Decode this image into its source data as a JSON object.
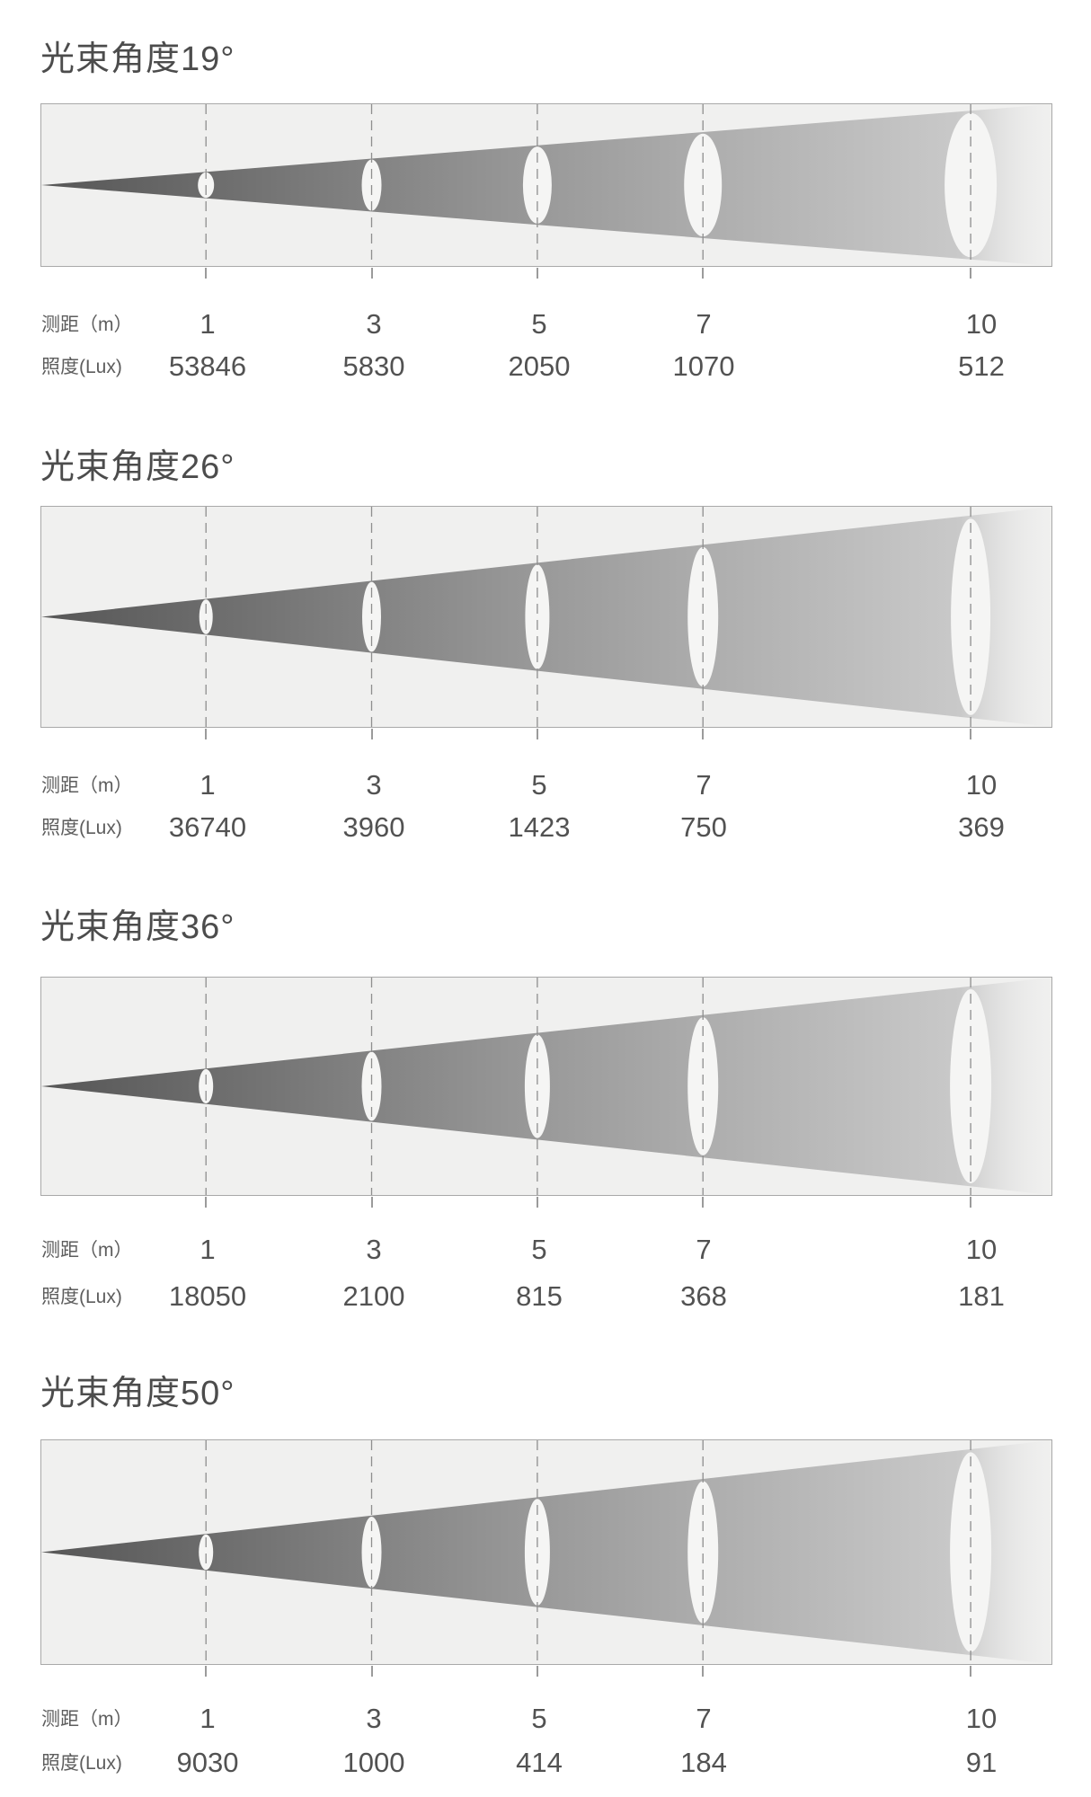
{
  "labels": {
    "distance_row": "测距（m）",
    "lux_row": "照度(Lux)"
  },
  "distances": [
    "1",
    "3",
    "5",
    "7",
    "10"
  ],
  "sections": [
    {
      "title": "光束角度19°",
      "lux": [
        "53846",
        "5830",
        "2050",
        "1070",
        "512"
      ]
    },
    {
      "title": "光束角度26°",
      "lux": [
        "36740",
        "3960",
        "1423",
        "750",
        "369"
      ]
    },
    {
      "title": "光束角度36°",
      "lux": [
        "18050",
        "2100",
        "815",
        "368",
        "181"
      ]
    },
    {
      "title": "光束角度50°",
      "lux": [
        "9030",
        "1000",
        "414",
        "184",
        "91"
      ]
    }
  ],
  "colors": {
    "page_bg": "#ffffff",
    "panel_bg": "#f0f0ef",
    "panel_border": "#a9a9a9",
    "beam_dark": "#565656",
    "beam_light": "#e9e9e9",
    "dashed_line": "#8e8e8e",
    "spot_ellipse": "#f5f5f4",
    "title_text": "#4c4c4c",
    "value_text": "#525252"
  },
  "chart_data": [
    {
      "type": "table",
      "title": "光束角度19°",
      "xlabel": "测距（m）",
      "ylabel": "照度(Lux)",
      "x": [
        1,
        3,
        5,
        7,
        10
      ],
      "values": [
        53846,
        5830,
        2050,
        1070,
        512
      ]
    },
    {
      "type": "table",
      "title": "光束角度26°",
      "xlabel": "测距（m）",
      "ylabel": "照度(Lux)",
      "x": [
        1,
        3,
        5,
        7,
        10
      ],
      "values": [
        36740,
        3960,
        1423,
        750,
        369
      ]
    },
    {
      "type": "table",
      "title": "光束角度36°",
      "xlabel": "测距（m）",
      "ylabel": "照度(Lux)",
      "x": [
        1,
        3,
        5,
        7,
        10
      ],
      "values": [
        18050,
        2100,
        815,
        368,
        181
      ]
    },
    {
      "type": "table",
      "title": "光束角度50°",
      "xlabel": "测距（m）",
      "ylabel": "照度(Lux)",
      "x": [
        1,
        3,
        5,
        7,
        10
      ],
      "values": [
        9030,
        1000,
        414,
        184,
        91
      ]
    }
  ]
}
